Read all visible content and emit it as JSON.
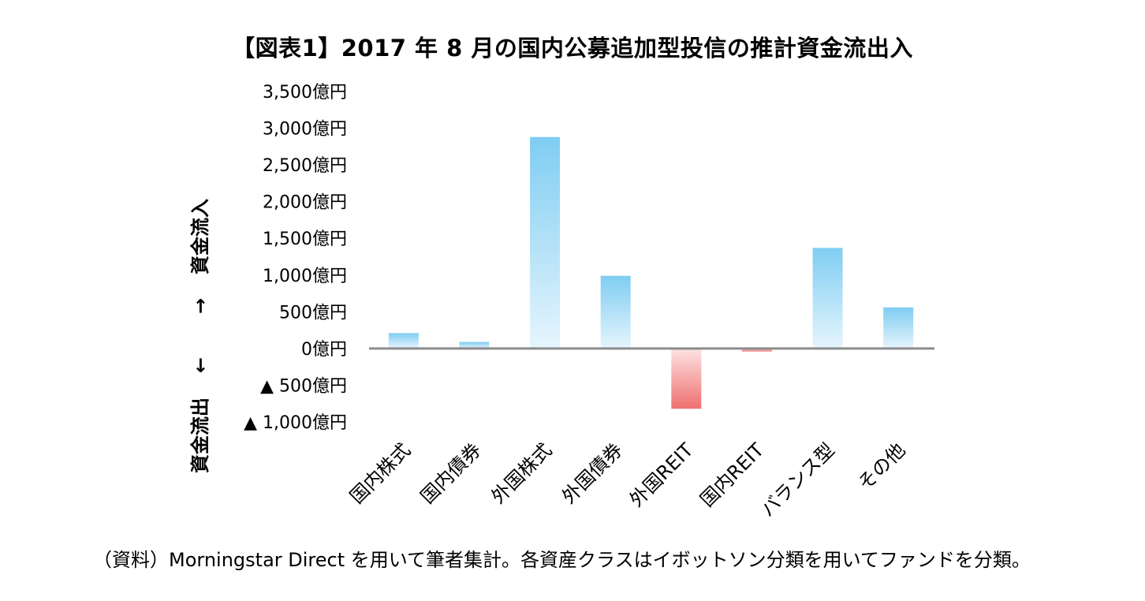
{
  "chart_data": {
    "type": "bar",
    "title": "【図表1】2017 年 8 月の国内公募追加型投信の推計資金流出入",
    "categories": [
      "国内株式",
      "国内債券",
      "外国株式",
      "外国債券",
      "外国REIT",
      "国内REIT",
      "バランス型",
      "その他"
    ],
    "values": [
      210,
      90,
      2880,
      990,
      -820,
      -40,
      1370,
      560
    ],
    "ylim": [
      -1000,
      3500
    ],
    "yticks": [
      3500,
      3000,
      2500,
      2000,
      1500,
      1000,
      500,
      0,
      -500,
      -1000
    ],
    "ytick_labels": [
      "3,500億円",
      "3,000億円",
      "2,500億円",
      "2,000億円",
      "1,500億円",
      "1,000億円",
      "500億円",
      "0億円",
      "▲ 500億円",
      "▲ 1,000億円"
    ],
    "ylabel_inflow": "資金流入",
    "ylabel_outflow": "資金流出",
    "arrow_up": "→",
    "arrow_down": "←",
    "grid": false,
    "colors": {
      "positive_top": "#7fcdf2",
      "positive_bottom": "#e6f5fd",
      "negative_top": "#fde3e3",
      "negative_bottom": "#ef6f6f",
      "axis": "#8c8c8c"
    }
  },
  "source_note": "（資料）Morningstar Direct を用いて筆者集計。各資産クラスはイボットソン分類を用いてファンドを分類。"
}
